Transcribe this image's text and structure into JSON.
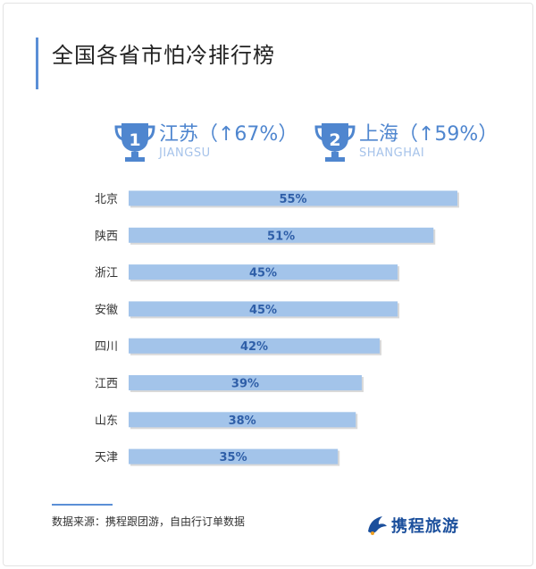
{
  "title": "全国各省市怕冷排行榜",
  "ranks": [
    {
      "number": "1",
      "label": "江苏（↑67%）",
      "pinyin": "JIANGSU"
    },
    {
      "number": "2",
      "label": "上海（↑59%）",
      "pinyin": "SHANGHAI"
    }
  ],
  "colors": {
    "accent": "#5b8fd6",
    "bar": "#a3c4ea",
    "bar_label": "#2f5fa8",
    "brand": "#1b4f9c"
  },
  "chart_data": {
    "type": "bar",
    "orientation": "horizontal",
    "categories": [
      "北京",
      "陕西",
      "浙江",
      "安徽",
      "四川",
      "江西",
      "山东",
      "天津"
    ],
    "values": [
      55,
      51,
      45,
      45,
      42,
      39,
      38,
      35
    ],
    "value_labels": [
      "55%",
      "51%",
      "45%",
      "45%",
      "42%",
      "39%",
      "38%",
      "35%"
    ],
    "xlim": [
      0,
      60
    ],
    "grid": false
  },
  "footer": {
    "source": "数据来源：携程跟团游，自由行订单数据",
    "brand": "携程旅游"
  }
}
